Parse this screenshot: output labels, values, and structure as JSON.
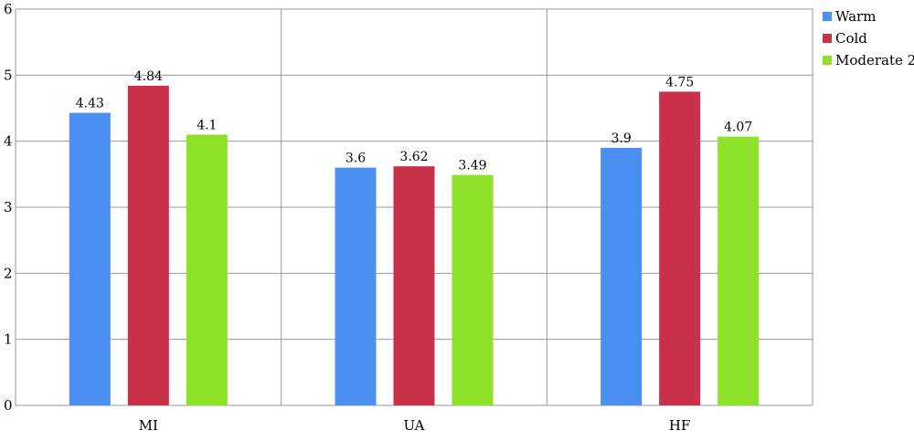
{
  "chart_data": {
    "type": "bar",
    "categories": [
      "MI",
      "UA",
      "HF"
    ],
    "series": [
      {
        "name": "Warm",
        "color": "#4a90f0",
        "values": [
          4.43,
          3.6,
          3.9
        ]
      },
      {
        "name": "Cold",
        "color": "#c9304a",
        "values": [
          4.84,
          3.62,
          4.75
        ]
      },
      {
        "name": "Moderate 2",
        "color": "#8fe22a",
        "values": [
          4.1,
          3.49,
          4.07
        ]
      }
    ],
    "data_labels": [
      [
        "4.43",
        "4.84",
        "4.1"
      ],
      [
        "3.6",
        "3.62",
        "3.49"
      ],
      [
        "3.9",
        "4.75",
        "4.07"
      ]
    ],
    "y_ticks": [
      "0",
      "1",
      "2",
      "3",
      "4",
      "5",
      "6"
    ],
    "ylim": [
      0,
      6
    ],
    "grid": true,
    "legend_position": "top-right"
  }
}
